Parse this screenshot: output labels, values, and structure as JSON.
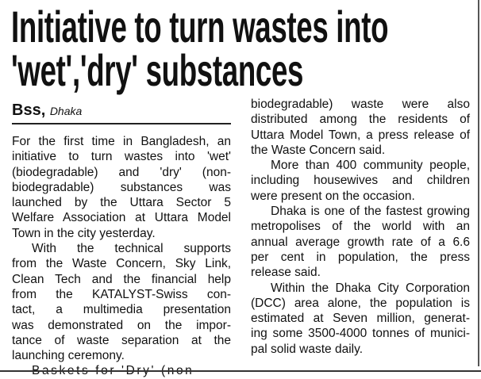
{
  "headline": {
    "line1": "Initiative to turn wastes into",
    "line2": "'wet','dry' substances"
  },
  "byline": {
    "agency": "Bss,",
    "place": "Dhaka"
  },
  "left_column": [
    "For the first time in Bangladesh, an",
    "initiative to turn wastes into 'wet'",
    "(biodegradable) and 'dry' (non-",
    "biodegradable) substances was",
    "launched by the Uttara Sector 5",
    "Welfare Association at Uttara Model",
    "Town in the city yesterday.",
    "With the technical supports",
    "from the Waste Concern, Sky Link,",
    "Clean Tech and the financial help",
    "from the KATALYST-Swiss con-",
    "tact, a multimedia presentation",
    "was demonstrated on the impor-",
    "tance of waste separation at the",
    "launching ceremony.",
    "Baskets for 'Dry' (non-"
  ],
  "right_column": [
    "biodegradable) waste were also",
    "distributed among the residents of",
    "Uttara Model Town, a press release of",
    "the Waste Concern said.",
    "More than 400 community people,",
    "including housewives and children",
    "were present on the occasion.",
    "Dhaka is one of the fastest growing",
    "metropolises of the world with an",
    "annual average growth rate of a 6.6",
    "per cent in population, the press",
    "release said.",
    "Within the Dhaka City Corporation",
    "(DCC) area alone, the population is",
    "estimated at Seven million, generat-",
    "ing some 3500-4000 tonnes of munici-",
    "pal solid waste daily."
  ]
}
